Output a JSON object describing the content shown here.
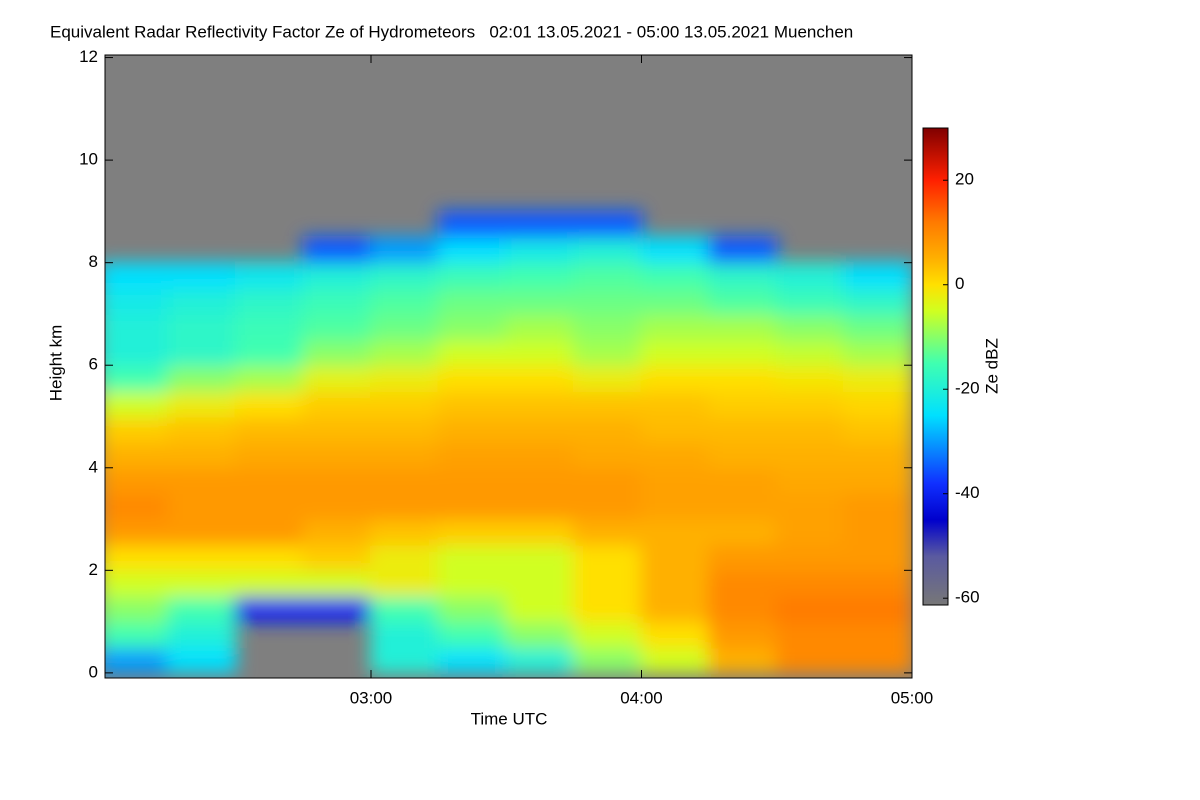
{
  "chart_data": {
    "type": "heatmap",
    "title": "Equivalent Radar Reflectivity Factor Ze of Hydrometeors   02:01 13.05.2021 - 05:00 13.05.2021 Muenchen",
    "x_label": "Time UTC",
    "y_label": "Height km",
    "colorbar_label": "Ze dBZ",
    "xlim": [
      2.0167,
      5.0
    ],
    "xticks": [
      {
        "value": 3,
        "label": "03:00"
      },
      {
        "value": 4,
        "label": "04:00"
      },
      {
        "value": 5,
        "label": "05:00"
      }
    ],
    "ylim": [
      -0.1,
      12.05
    ],
    "yticks": [
      0,
      2,
      4,
      6,
      8,
      10,
      12
    ],
    "clim": [
      -61.3,
      30
    ],
    "cticks": [
      -60,
      -40,
      -20,
      0,
      20
    ],
    "background": "#7f7f7f",
    "colorscale": [
      [
        -61.3,
        "#777777"
      ],
      [
        -52,
        "#5a5aa0"
      ],
      [
        -45,
        "#0000cc"
      ],
      [
        -38,
        "#1030ff"
      ],
      [
        -25,
        "#00e0ff"
      ],
      [
        -15,
        "#40ffb0"
      ],
      [
        -5,
        "#d0ff20"
      ],
      [
        0,
        "#ffe000"
      ],
      [
        5,
        "#ffb000"
      ],
      [
        12,
        "#ff7a00"
      ],
      [
        20,
        "#ff2000"
      ],
      [
        30,
        "#800000"
      ]
    ],
    "x": [
      2.125,
      2.375,
      2.625,
      2.875,
      3.125,
      3.375,
      3.625,
      3.875,
      4.125,
      4.375,
      4.625,
      4.875
    ],
    "x_width": 0.25,
    "y": [
      0.25,
      0.75,
      1.25,
      1.75,
      2.25,
      2.75,
      3.25,
      3.75,
      4.25,
      4.75,
      5.25,
      5.75,
      6.25,
      6.75,
      7.25,
      7.75,
      8.25,
      8.75,
      9.25,
      9.75,
      10.25,
      10.75,
      11.25,
      11.75
    ],
    "y_height": 0.5,
    "z": [
      [
        -30,
        -25,
        null,
        null,
        -20,
        -25,
        -20,
        -10,
        -5,
        5,
        10,
        10
      ],
      [
        -15,
        -20,
        null,
        null,
        -20,
        -15,
        -10,
        -5,
        0,
        8,
        10,
        10
      ],
      [
        -10,
        -15,
        -40,
        -40,
        -15,
        -10,
        -5,
        0,
        5,
        10,
        12,
        12
      ],
      [
        -5,
        -5,
        -5,
        -5,
        -2,
        -5,
        -5,
        0,
        5,
        10,
        10,
        10
      ],
      [
        0,
        0,
        0,
        2,
        -2,
        -5,
        -5,
        0,
        5,
        8,
        8,
        8
      ],
      [
        8,
        8,
        8,
        5,
        3,
        2,
        2,
        5,
        5,
        5,
        7,
        8
      ],
      [
        10,
        8,
        8,
        8,
        8,
        8,
        8,
        8,
        7,
        7,
        7,
        8
      ],
      [
        8,
        8,
        8,
        8,
        8,
        8,
        8,
        8,
        7,
        7,
        6,
        6
      ],
      [
        5,
        5,
        6,
        6,
        6,
        7,
        7,
        6,
        6,
        5,
        5,
        5
      ],
      [
        2,
        3,
        4,
        4,
        4,
        5,
        5,
        5,
        4,
        4,
        4,
        3
      ],
      [
        -5,
        -2,
        0,
        2,
        2,
        3,
        3,
        3,
        3,
        2,
        2,
        1
      ],
      [
        -15,
        -10,
        -8,
        -3,
        -2,
        0,
        0,
        -2,
        0,
        0,
        -1,
        -2
      ],
      [
        -20,
        -18,
        -15,
        -10,
        -8,
        -5,
        -5,
        -8,
        -5,
        -5,
        -6,
        -8
      ],
      [
        -20,
        -18,
        -16,
        -14,
        -12,
        -10,
        -8,
        -10,
        -8,
        -8,
        -10,
        -12
      ],
      [
        -22,
        -20,
        -18,
        -16,
        -14,
        -12,
        -12,
        -12,
        -12,
        -14,
        -16,
        -18
      ],
      [
        -25,
        -25,
        -23,
        -20,
        -18,
        -16,
        -15,
        -14,
        -15,
        -18,
        -20,
        -25
      ],
      [
        null,
        null,
        null,
        -35,
        -30,
        -25,
        -22,
        -20,
        -25,
        -35,
        null,
        null
      ],
      [
        null,
        null,
        null,
        null,
        null,
        -35,
        -35,
        -35,
        null,
        null,
        null,
        null
      ],
      [
        null,
        null,
        null,
        null,
        null,
        null,
        null,
        null,
        null,
        null,
        null,
        null
      ],
      [
        null,
        null,
        null,
        null,
        null,
        null,
        null,
        null,
        null,
        null,
        null,
        null
      ],
      [
        null,
        null,
        null,
        null,
        null,
        null,
        null,
        null,
        null,
        null,
        null,
        null
      ],
      [
        null,
        null,
        null,
        null,
        null,
        null,
        null,
        null,
        null,
        null,
        null,
        null
      ],
      [
        null,
        null,
        null,
        null,
        null,
        null,
        null,
        null,
        null,
        null,
        null,
        null
      ],
      [
        null,
        null,
        null,
        null,
        null,
        null,
        null,
        null,
        null,
        null,
        null,
        null
      ]
    ]
  }
}
